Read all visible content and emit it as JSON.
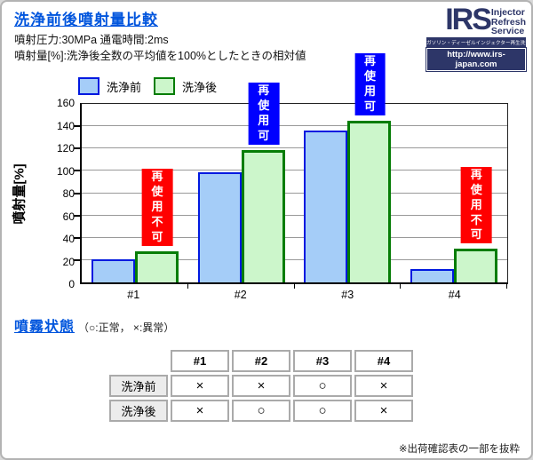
{
  "header": {
    "title": "洗浄前後噴射量比較",
    "subtitle1": "噴射圧力:30MPa  通電時間:2ms",
    "subtitle2": "噴射量[%]:洗浄後全数の平均値を100%としたときの相対値"
  },
  "logo": {
    "acronym": "IRS",
    "words": [
      "Injector",
      "Refresh",
      "Service"
    ],
    "tagline": "ガソリン・ディーゼルインジェクター再生洗浄サービス",
    "url": "http://www.irs-japan.com",
    "navy": "#2d3668"
  },
  "chart_data": {
    "type": "bar",
    "title": "洗浄前後噴射量比較",
    "categories": [
      "#1",
      "#2",
      "#3",
      "#4"
    ],
    "series": [
      {
        "name": "洗浄前",
        "values": [
          21,
          99,
          136,
          12
        ],
        "fill": "#a5cdf8",
        "border": "#0019e0"
      },
      {
        "name": "洗浄後",
        "values": [
          28,
          119,
          145,
          30
        ],
        "fill": "#ccf6cb",
        "border": "#067d06"
      }
    ],
    "ylabel": "噴射量[%]",
    "ylim": [
      0,
      160
    ],
    "ytick_step": 20,
    "grid": true,
    "legend_position": "top-left",
    "annotations": [
      {
        "category": "#1",
        "text": "再使用\n不可",
        "type": "ng"
      },
      {
        "category": "#2",
        "text": "再使用可",
        "type": "ok"
      },
      {
        "category": "#3",
        "text": "再使用可",
        "type": "ok"
      },
      {
        "category": "#4",
        "text": "再使用\n不可",
        "type": "ng"
      }
    ],
    "annotation_colors": {
      "ok": "#0000ff",
      "ng": "#ff0000"
    }
  },
  "spray_section": {
    "heading": "噴霧状態",
    "heading_note": "（○:正常， ×:異常）",
    "table": {
      "col_headers": [
        "",
        "#1",
        "#2",
        "#3",
        "#4"
      ],
      "rows": [
        {
          "label": "洗浄前",
          "cells": [
            "×",
            "×",
            "○",
            "×"
          ]
        },
        {
          "label": "洗浄後",
          "cells": [
            "×",
            "○",
            "○",
            "×"
          ]
        }
      ]
    },
    "footnote": "※出荷確認表の一部を抜粋"
  }
}
